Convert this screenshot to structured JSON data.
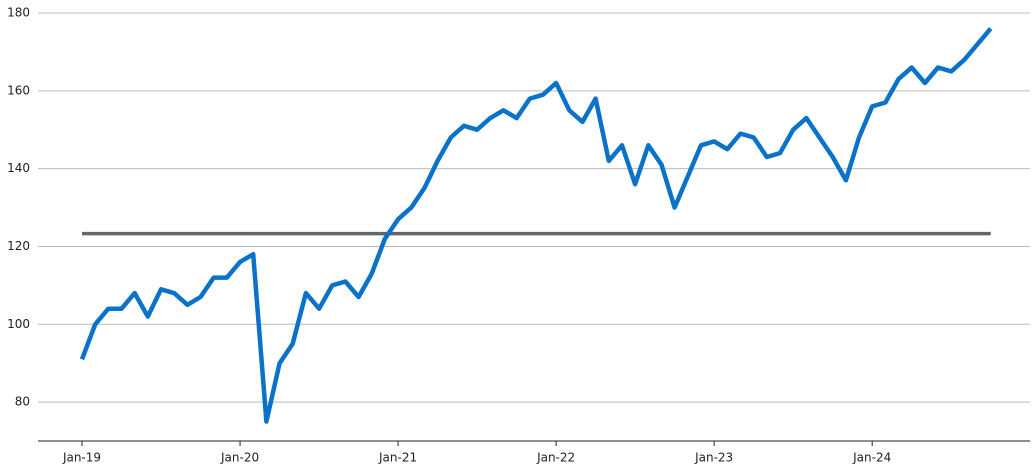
{
  "chart_data": {
    "type": "line",
    "x": [
      "2019-01",
      "2019-02",
      "2019-03",
      "2019-04",
      "2019-05",
      "2019-06",
      "2019-07",
      "2019-08",
      "2019-09",
      "2019-10",
      "2019-11",
      "2019-12",
      "2020-01",
      "2020-02",
      "2020-03",
      "2020-04",
      "2020-05",
      "2020-06",
      "2020-07",
      "2020-08",
      "2020-09",
      "2020-10",
      "2020-11",
      "2020-12",
      "2021-01",
      "2021-02",
      "2021-03",
      "2021-04",
      "2021-05",
      "2021-06",
      "2021-07",
      "2021-08",
      "2021-09",
      "2021-10",
      "2021-11",
      "2021-12",
      "2022-01",
      "2022-02",
      "2022-03",
      "2022-04",
      "2022-05",
      "2022-06",
      "2022-07",
      "2022-08",
      "2022-09",
      "2022-10",
      "2022-11",
      "2022-12",
      "2023-01",
      "2023-02",
      "2023-03",
      "2023-04",
      "2023-05",
      "2023-06",
      "2023-07",
      "2023-08",
      "2023-09",
      "2023-10",
      "2023-11",
      "2023-12",
      "2024-01",
      "2024-02",
      "2024-03",
      "2024-04",
      "2024-05",
      "2024-06",
      "2024-07",
      "2024-08",
      "2024-09",
      "2024-10"
    ],
    "series": [
      {
        "color": "#0a72c8",
        "values": [
          91,
          100,
          104,
          104,
          108,
          102,
          109,
          108,
          105,
          107,
          112,
          112,
          116,
          118,
          75,
          90,
          95,
          108,
          104,
          110,
          111,
          107,
          113,
          122,
          127,
          130,
          135,
          142,
          148,
          151,
          150,
          153,
          155,
          153,
          158,
          159,
          162,
          155,
          152,
          158,
          142,
          146,
          136,
          146,
          141,
          130,
          138,
          146,
          147,
          145,
          149,
          148,
          143,
          144,
          150,
          153,
          148,
          143,
          137,
          148,
          156,
          157,
          163,
          166,
          162,
          166,
          165,
          168,
          172,
          176
        ]
      }
    ],
    "reference_line": {
      "value": 123.3,
      "color": "#666666"
    },
    "ylim": [
      70,
      180
    ],
    "yticks": [
      80,
      100,
      120,
      140,
      160,
      180
    ],
    "xticks": [
      {
        "value": "2019-01",
        "label": "Jan-19"
      },
      {
        "value": "2020-01",
        "label": "Jan-20"
      },
      {
        "value": "2021-01",
        "label": "Jan-21"
      },
      {
        "value": "2022-01",
        "label": "Jan-22"
      },
      {
        "value": "2023-01",
        "label": "Jan-23"
      },
      {
        "value": "2024-01",
        "label": "Jan-24"
      }
    ],
    "grid": true
  }
}
